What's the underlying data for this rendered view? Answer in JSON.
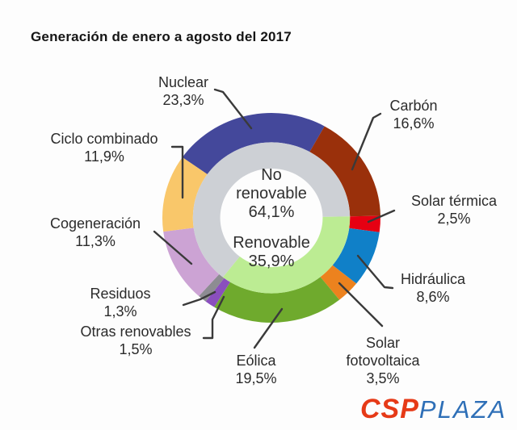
{
  "title": "Generación de enero a agosto del 2017",
  "chart_data": {
    "type": "donut",
    "title": "Generación de enero a agosto del 2017",
    "units": "%",
    "legend_position": "callout-labels",
    "start_angle_outer_deg": -54.75,
    "start_angle_inner_deg": 218.13,
    "outer_ring": [
      {
        "id": "nuclear",
        "label": "Nuclear",
        "value": 23.3,
        "value_label": "23,3%",
        "color": "#44489B"
      },
      {
        "id": "carbon",
        "label": "Carbón",
        "value": 16.6,
        "value_label": "16,6%",
        "color": "#9A300B"
      },
      {
        "id": "solar-termica",
        "label": "Solar térmica",
        "value": 2.5,
        "value_label": "2,5%",
        "color": "#E60012"
      },
      {
        "id": "hidraulica",
        "label": "Hidráulica",
        "value": 8.6,
        "value_label": "8,6%",
        "color": "#1080C8"
      },
      {
        "id": "solar-fotovoltaica",
        "label": "Solar fotovoltaica",
        "value": 3.5,
        "value_label": "3,5%",
        "color": "#EC821E"
      },
      {
        "id": "eolica",
        "label": "Eólica",
        "value": 19.5,
        "value_label": "19,5%",
        "color": "#6FAA2D"
      },
      {
        "id": "otras-renovables",
        "label": "Otras renovables",
        "value": 1.5,
        "value_label": "1,5%",
        "color": "#8A4FBE"
      },
      {
        "id": "residuos",
        "label": "Residuos",
        "value": 1.3,
        "value_label": "1,3%",
        "color": "#8D8C92"
      },
      {
        "id": "cogeneracion",
        "label": "Cogeneración",
        "value": 11.3,
        "value_label": "11,3%",
        "color": "#CCA3D4"
      },
      {
        "id": "ciclo-combinado",
        "label": "Ciclo combinado",
        "value": 11.9,
        "value_label": "11,9%",
        "color": "#F9C76A"
      }
    ],
    "inner_ring": [
      {
        "id": "no-renovable",
        "label": "No renovable",
        "value": 64.1,
        "value_label": "64,1%",
        "color": "#CDD0D5"
      },
      {
        "id": "renovable",
        "label": "Renovable",
        "value": 35.9,
        "value_label": "35,9%",
        "color": "#BCEC93"
      }
    ]
  },
  "logo": {
    "csp_text": "CSP",
    "plaza_text": "PLAZA",
    "csp_color": "#E63A17",
    "plaza_color": "#2E6FB7"
  }
}
